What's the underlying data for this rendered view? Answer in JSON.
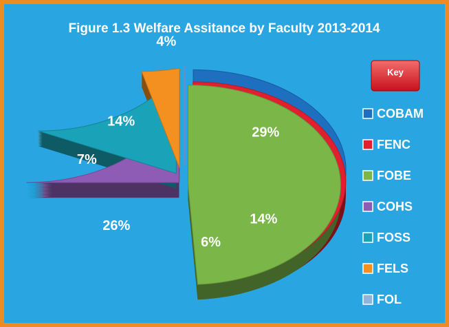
{
  "chart_data": {
    "type": "pie",
    "title": "Figure 1.3  Welfare Assitance by Faculty 2013-2014",
    "legend_title": "Key",
    "categories": [
      "COBAM",
      "FENC",
      "FOBE",
      "COHS",
      "FOSS",
      "FELS",
      "FOL"
    ],
    "values": [
      29,
      14,
      6,
      26,
      7,
      14,
      4
    ],
    "value_labels": [
      "29%",
      "14%",
      "6%",
      "26%",
      "7%",
      "14%",
      "4%"
    ],
    "colors": [
      "#1f6fc0",
      "#e0202e",
      "#7ab648",
      "#8e5bb5",
      "#1aa3b8",
      "#f39020",
      "#8fb4e0"
    ],
    "legend": "right"
  }
}
